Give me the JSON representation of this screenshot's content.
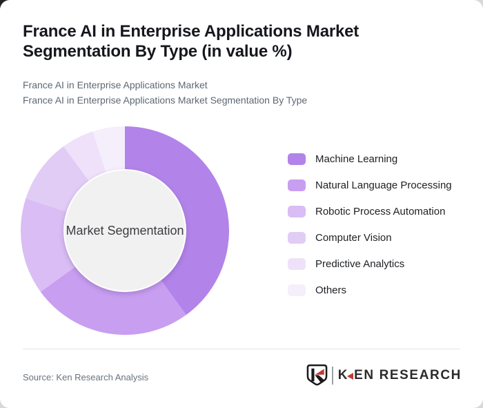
{
  "page": {
    "title": "France AI in Enterprise Applications Market Segmentation By Type (in value %)",
    "subtitle_line1": "France AI in Enterprise Applications Market",
    "subtitle_line2": "France AI in Enterprise Applications Market Segmentation By Type",
    "source": "Source: Ken Research Analysis",
    "brand": {
      "name": "KEN RESEARCH",
      "name_first_letter": "K",
      "name_rest": "EN RESEARCH",
      "emblem": "shield-k-logo",
      "accent_red": "#c23a31",
      "text_color": "#2b2b2b"
    }
  },
  "chart_data": {
    "type": "pie",
    "variant": "donut",
    "title": "France AI in Enterprise Applications Market Segmentation By Type (in value %)",
    "unit": "value %",
    "center_label": "Market Segmentation",
    "categories": [
      "Machine Learning",
      "Natural Language Processing",
      "Robotic Process Automation",
      "Computer Vision",
      "Predictive Analytics",
      "Others"
    ],
    "values": [
      40,
      25,
      15,
      10,
      5,
      5
    ],
    "colors": [
      "#b283e9",
      "#c89ef0",
      "#d9bdf4",
      "#e1ccf6",
      "#eee1f9",
      "#f5eefb"
    ],
    "start_angle_deg": 0,
    "direction": "clockwise",
    "center_circle_color": "#f1f1f2",
    "legend_position": "right",
    "data_labels_shown": false
  }
}
